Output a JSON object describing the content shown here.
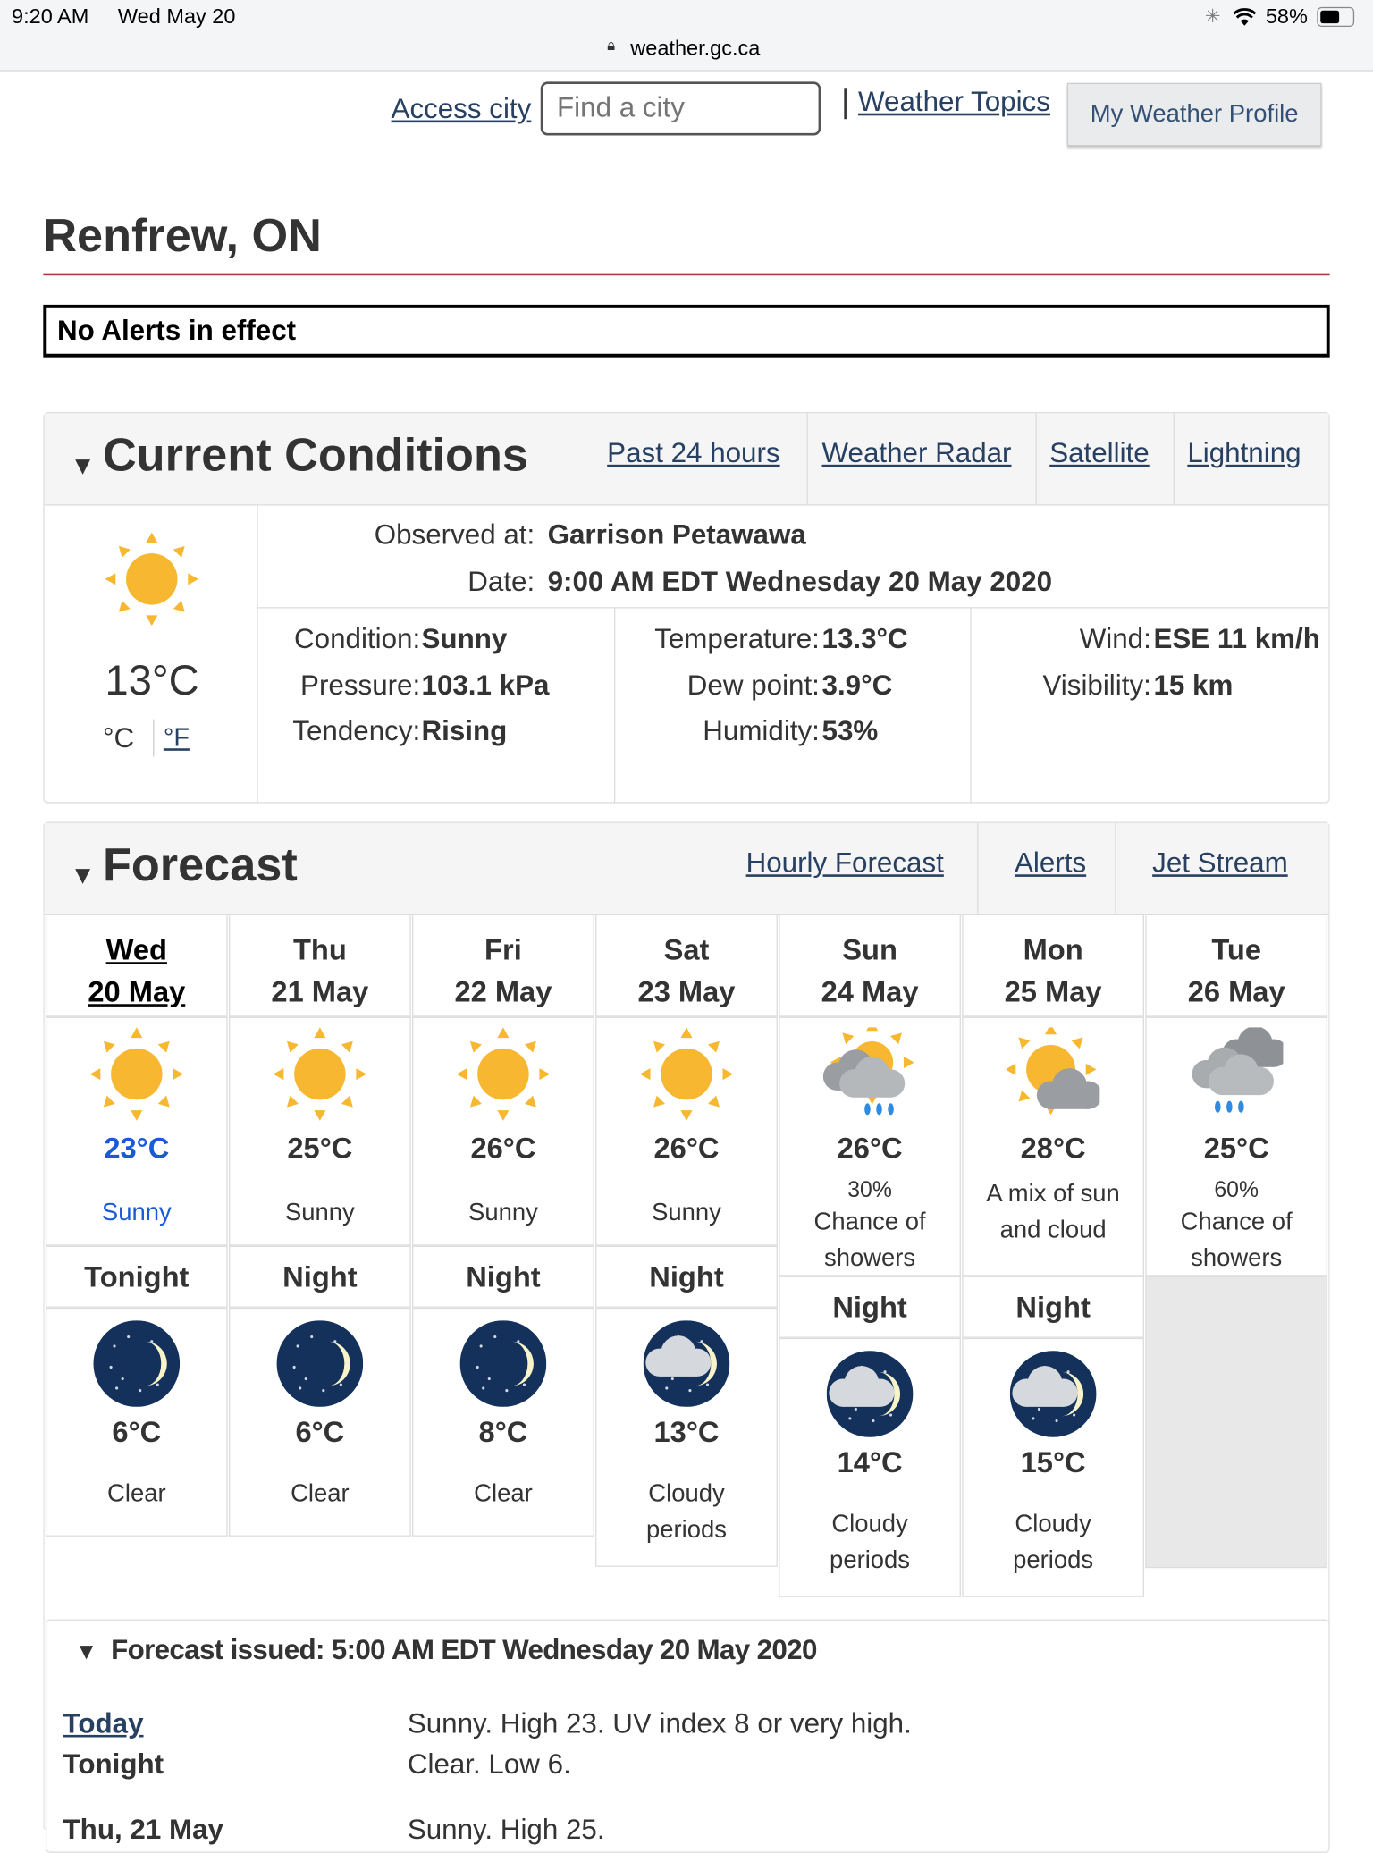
{
  "status_bar": {
    "time": "9:20 AM",
    "date": "Wed May 20",
    "url": "weather.gc.ca",
    "battery": "58%"
  },
  "nav": {
    "access_city": "Access city",
    "find_city_placeholder": "Find a city",
    "weather_topics": "Weather Topics",
    "my_profile": "My Weather Profile"
  },
  "page_title": "Renfrew, ON",
  "alert_text": "No Alerts in effect",
  "current": {
    "title": "Current Conditions",
    "links": [
      "Past 24 hours",
      "Weather Radar",
      "Satellite",
      "Lightning"
    ],
    "icon": "sun-icon",
    "temp": "13°C",
    "unit_c": "°C",
    "unit_f": "°F",
    "observed_label": "Observed at:",
    "observed_value": "Garrison Petawawa",
    "date_label": "Date:",
    "date_value": "9:00 AM EDT Wednesday 20 May 2020",
    "condition_label": "Condition:",
    "condition": "Sunny",
    "pressure_label": "Pressure:",
    "pressure": "103.1 kPa",
    "tendency_label": "Tendency:",
    "tendency": "Rising",
    "temperature_label": "Temperature:",
    "temperature": "13.3°C",
    "dewpoint_label": "Dew point:",
    "dewpoint": "3.9°C",
    "humidity_label": "Humidity:",
    "humidity": "53%",
    "wind_label": "Wind:",
    "wind": "ESE 11 km/h",
    "visibility_label": "Visibility:",
    "visibility": "15 km"
  },
  "forecast": {
    "title": "Forecast",
    "links": [
      "Hourly Forecast",
      "Alerts",
      "Jet Stream"
    ],
    "days": [
      {
        "day": "Wed",
        "date": "20 May",
        "icon": "sun",
        "temp": "23°C",
        "pop": "",
        "desc": "Sunny",
        "night_label": "Tonight",
        "night_icon": "moon",
        "night_temp": "6°C",
        "night_desc": "Clear"
      },
      {
        "day": "Thu",
        "date": "21 May",
        "icon": "sun",
        "temp": "25°C",
        "pop": "",
        "desc": "Sunny",
        "night_label": "Night",
        "night_icon": "moon",
        "night_temp": "6°C",
        "night_desc": "Clear"
      },
      {
        "day": "Fri",
        "date": "22 May",
        "icon": "sun",
        "temp": "26°C",
        "pop": "",
        "desc": "Sunny",
        "night_label": "Night",
        "night_icon": "moon",
        "night_temp": "8°C",
        "night_desc": "Clear"
      },
      {
        "day": "Sat",
        "date": "23 May",
        "icon": "sun",
        "temp": "26°C",
        "pop": "",
        "desc": "Sunny",
        "night_label": "Night",
        "night_icon": "moon-cloud",
        "night_temp": "13°C",
        "night_desc": "Cloudy periods"
      },
      {
        "day": "Sun",
        "date": "24 May",
        "icon": "sun-cloud-rain",
        "temp": "26°C",
        "pop": "30%",
        "desc": "Chance of showers",
        "night_label": "Night",
        "night_icon": "moon-cloud",
        "night_temp": "14°C",
        "night_desc": "Cloudy periods"
      },
      {
        "day": "Mon",
        "date": "25 May",
        "icon": "sun-cloud",
        "temp": "28°C",
        "pop": "",
        "desc": "A mix of sun and cloud",
        "night_label": "Night",
        "night_icon": "moon-cloud",
        "night_temp": "15°C",
        "night_desc": "Cloudy periods"
      },
      {
        "day": "Tue",
        "date": "26 May",
        "icon": "cloud-rain",
        "temp": "25°C",
        "pop": "60%",
        "desc": "Chance of showers"
      }
    ]
  },
  "issued": {
    "title": "Forecast issued: 5:00 AM EDT Wednesday 20 May 2020",
    "rows": [
      {
        "period": "Today",
        "text": "Sunny. High 23. UV index 8 or very high."
      },
      {
        "period": "Tonight",
        "text": "Clear. Low 6."
      },
      {
        "period": "Thu, 21 May",
        "text": "Sunny. High 25."
      }
    ]
  },
  "colors": {
    "link": "#284162",
    "today_blue": "#1a5ad9",
    "title_rule": "#af3c43",
    "sun": "#f7b731"
  }
}
